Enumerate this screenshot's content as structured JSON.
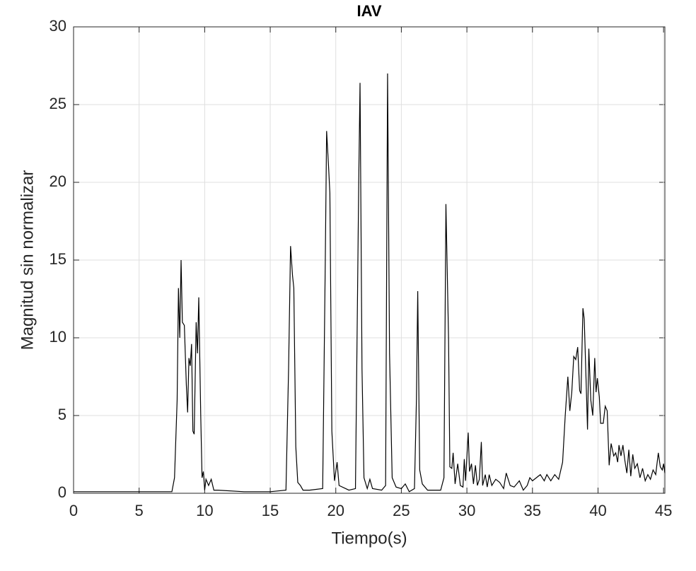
{
  "chart_data": {
    "type": "line",
    "title": "IAV",
    "xlabel": "Tiempo(s)",
    "ylabel": "Magnitud sin normalizar",
    "x": [
      0,
      2,
      4,
      6,
      7.5,
      7.7,
      7.9,
      8.0,
      8.1,
      8.2,
      8.3,
      8.45,
      8.6,
      8.7,
      8.8,
      8.9,
      9.0,
      9.1,
      9.2,
      9.35,
      9.45,
      9.55,
      9.7,
      9.8,
      9.9,
      10.0,
      10.1,
      10.3,
      10.5,
      10.7,
      11,
      13,
      15,
      16.2,
      16.4,
      16.55,
      16.7,
      16.8,
      16.95,
      17.1,
      17.3,
      17.5,
      18,
      19,
      19.2,
      19.3,
      19.45,
      19.55,
      19.7,
      19.9,
      20.1,
      20.25,
      21,
      21.5,
      21.75,
      21.85,
      22.0,
      22.15,
      22.4,
      22.6,
      22.8,
      23.5,
      23.8,
      23.95,
      24.1,
      24.3,
      24.6,
      25,
      25.3,
      25.6,
      26,
      26.15,
      26.25,
      26.4,
      26.6,
      27,
      28.0,
      28.25,
      28.4,
      28.6,
      28.7,
      28.85,
      28.95,
      29.1,
      29.3,
      29.5,
      29.7,
      29.8,
      29.9,
      30.1,
      30.2,
      30.35,
      30.5,
      30.65,
      30.8,
      30.95,
      31.1,
      31.2,
      31.4,
      31.55,
      31.7,
      31.9,
      32.2,
      32.5,
      32.8,
      33.0,
      33.3,
      33.6,
      34.0,
      34.3,
      34.6,
      34.8,
      35.0,
      35.3,
      35.6,
      35.9,
      36.1,
      36.4,
      36.7,
      37.0,
      37.3,
      37.5,
      37.7,
      37.85,
      38.0,
      38.15,
      38.3,
      38.45,
      38.6,
      38.7,
      38.85,
      38.95,
      39.1,
      39.2,
      39.3,
      39.45,
      39.6,
      39.75,
      39.85,
      39.95,
      40.1,
      40.2,
      40.4,
      40.55,
      40.7,
      40.85,
      41.0,
      41.2,
      41.35,
      41.5,
      41.6,
      41.75,
      41.9,
      42.05,
      42.2,
      42.35,
      42.5,
      42.65,
      42.8,
      43.0,
      43.2,
      43.4,
      43.6,
      43.8,
      44.0,
      44.2,
      44.4,
      44.6,
      44.75,
      44.9,
      45.0,
      45.1
    ],
    "values": [
      0.1,
      0.1,
      0.1,
      0.1,
      0.1,
      1,
      6,
      13.2,
      10,
      15,
      11,
      10.8,
      7,
      5.2,
      8.7,
      8.2,
      9.6,
      4,
      3.8,
      11,
      9,
      12.6,
      5,
      1,
      1.4,
      0.2,
      0.9,
      0.5,
      0.9,
      0.2,
      0.2,
      0.1,
      0.1,
      0.2,
      8,
      15.9,
      14,
      13.2,
      3,
      0.7,
      0.5,
      0.2,
      0.2,
      0.3,
      15,
      23.3,
      21,
      19.3,
      4,
      0.8,
      2,
      0.5,
      0.2,
      0.3,
      20,
      26.4,
      8,
      1,
      0.3,
      0.9,
      0.3,
      0.2,
      0.5,
      27,
      9,
      1,
      0.4,
      0.3,
      0.6,
      0.1,
      0.3,
      6,
      13,
      1.5,
      0.6,
      0.2,
      0.2,
      1,
      18.6,
      10,
      1.7,
      1.6,
      2.6,
      0.6,
      1.9,
      0.5,
      0.4,
      2.2,
      0.8,
      3.9,
      1.4,
      1.9,
      0.6,
      1.8,
      0.5,
      0.9,
      3.3,
      0.5,
      1.2,
      0.4,
      1.2,
      0.5,
      0.9,
      0.7,
      0.3,
      1.3,
      0.5,
      0.4,
      0.8,
      0.2,
      0.5,
      1.0,
      0.8,
      1.0,
      1.2,
      0.8,
      1.2,
      0.8,
      1.2,
      0.9,
      2,
      5,
      7.5,
      5.3,
      6.5,
      8.8,
      8.6,
      9.4,
      6.6,
      6.4,
      11.9,
      11.2,
      7,
      4.1,
      9.3,
      6,
      5,
      8.7,
      6.5,
      7.4,
      6.2,
      4.5,
      4.5,
      5.6,
      5.3,
      1.8,
      3.2,
      2.4,
      2.6,
      2,
      3.1,
      2.4,
      3.1,
      2.1,
      1.3,
      2.8,
      1.1,
      2.5,
      1.6,
      1.9,
      1.0,
      1.6,
      0.8,
      1.2,
      0.9,
      1.5,
      1.2,
      2.6,
      1.7,
      1.5,
      1.9,
      1.3
    ],
    "color": "#000000",
    "xlim": [
      0,
      45.1
    ],
    "ylim": [
      0,
      30
    ],
    "xticks": [
      0,
      5,
      10,
      15,
      20,
      25,
      30,
      35,
      40,
      45
    ],
    "yticks": [
      0,
      5,
      10,
      15,
      20,
      25,
      30
    ],
    "grid": true
  }
}
